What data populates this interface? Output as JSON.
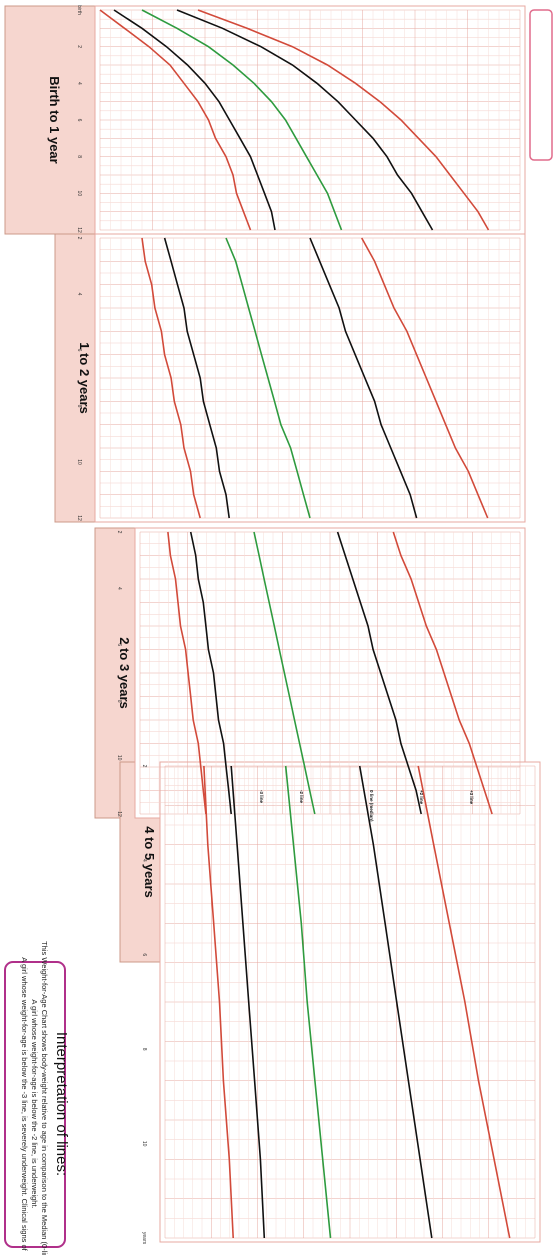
{
  "page": {
    "orientation": "rotated-90",
    "background": "#ffffff",
    "panel_fill": "#f6d6cf",
    "grid_color": "#e7a9a0"
  },
  "chart_data": [
    {
      "type": "line",
      "panel": "Birth to 1 year",
      "x_label": "months",
      "x": [
        0,
        1,
        2,
        3,
        4,
        5,
        6,
        7,
        8,
        9,
        10,
        11,
        12
      ],
      "series": [
        {
          "name": "-3",
          "color": "#d24a3a",
          "values": [
            2.0,
            2.7,
            3.4,
            4.0,
            4.4,
            4.8,
            5.1,
            5.3,
            5.6,
            5.8,
            5.9,
            6.1,
            6.3
          ]
        },
        {
          "name": "-2",
          "color": "#111111",
          "values": [
            2.4,
            3.2,
            3.9,
            4.5,
            5.0,
            5.4,
            5.7,
            6.0,
            6.3,
            6.5,
            6.7,
            6.9,
            7.0
          ]
        },
        {
          "name": "0",
          "color": "#2e9b3f",
          "values": [
            3.2,
            4.2,
            5.1,
            5.8,
            6.4,
            6.9,
            7.3,
            7.6,
            7.9,
            8.2,
            8.5,
            8.7,
            8.9
          ]
        },
        {
          "name": "+2",
          "color": "#111111",
          "values": [
            4.2,
            5.5,
            6.6,
            7.5,
            8.2,
            8.8,
            9.3,
            9.8,
            10.2,
            10.5,
            10.9,
            11.2,
            11.5
          ]
        },
        {
          "name": "+3",
          "color": "#d24a3a",
          "values": [
            4.8,
            6.2,
            7.5,
            8.5,
            9.3,
            10.0,
            10.6,
            11.1,
            11.6,
            12.0,
            12.4,
            12.8,
            13.1
          ]
        }
      ]
    },
    {
      "type": "line",
      "panel": "1 to 2 years",
      "x_label": "months",
      "x": [
        12,
        13,
        14,
        15,
        16,
        17,
        18,
        19,
        20,
        21,
        22,
        23,
        24
      ],
      "series": [
        {
          "name": "-3",
          "color": "#d24a3a",
          "values": [
            6.3,
            6.4,
            6.6,
            6.7,
            6.9,
            7.0,
            7.2,
            7.3,
            7.5,
            7.6,
            7.8,
            7.9,
            8.1
          ]
        },
        {
          "name": "-2",
          "color": "#111111",
          "values": [
            7.0,
            7.2,
            7.4,
            7.6,
            7.7,
            7.9,
            8.1,
            8.2,
            8.4,
            8.6,
            8.7,
            8.9,
            9.0
          ]
        },
        {
          "name": "0",
          "color": "#2e9b3f",
          "values": [
            8.9,
            9.2,
            9.4,
            9.6,
            9.8,
            10.0,
            10.2,
            10.4,
            10.6,
            10.9,
            11.1,
            11.3,
            11.5
          ]
        },
        {
          "name": "+2",
          "color": "#111111",
          "values": [
            11.5,
            11.8,
            12.1,
            12.4,
            12.6,
            12.9,
            13.2,
            13.5,
            13.7,
            14.0,
            14.3,
            14.6,
            14.8
          ]
        },
        {
          "name": "+3",
          "color": "#d24a3a",
          "values": [
            13.1,
            13.5,
            13.8,
            14.1,
            14.5,
            14.8,
            15.1,
            15.4,
            15.7,
            16.0,
            16.4,
            16.7,
            17.0
          ]
        }
      ]
    },
    {
      "type": "line",
      "panel": "2 to 3 years",
      "x_label": "months",
      "x": [
        24,
        25,
        26,
        27,
        28,
        29,
        30,
        31,
        32,
        33,
        34,
        35,
        36
      ],
      "series": [
        {
          "name": "-3",
          "color": "#d24a3a",
          "values": [
            8.1,
            8.2,
            8.4,
            8.5,
            8.6,
            8.8,
            8.9,
            9.0,
            9.1,
            9.3,
            9.4,
            9.5,
            9.6
          ]
        },
        {
          "name": "-2",
          "color": "#111111",
          "values": [
            9.0,
            9.2,
            9.3,
            9.5,
            9.6,
            9.7,
            9.9,
            10.0,
            10.1,
            10.3,
            10.4,
            10.5,
            10.6
          ]
        },
        {
          "name": "0",
          "color": "#2e9b3f",
          "values": [
            11.5,
            11.7,
            11.9,
            12.1,
            12.3,
            12.5,
            12.7,
            12.9,
            13.1,
            13.3,
            13.5,
            13.7,
            13.9
          ]
        },
        {
          "name": "+2",
          "color": "#111111",
          "values": [
            14.8,
            15.1,
            15.4,
            15.7,
            16.0,
            16.2,
            16.5,
            16.8,
            17.1,
            17.3,
            17.6,
            17.9,
            18.1
          ]
        },
        {
          "name": "+3",
          "color": "#d24a3a",
          "values": [
            17.0,
            17.3,
            17.7,
            18.0,
            18.3,
            18.7,
            19.0,
            19.3,
            19.6,
            20.0,
            20.3,
            20.6,
            20.9
          ]
        }
      ]
    },
    {
      "type": "line",
      "panel": "4 to 5 years",
      "x_label": "months",
      "x": [
        48,
        50,
        52,
        54,
        56,
        58,
        60
      ],
      "series": [
        {
          "name": "-3",
          "color": "#d24a3a",
          "values": [
            11.0,
            11.2,
            11.5,
            11.8,
            12.0,
            12.3,
            12.5
          ]
        },
        {
          "name": "-2",
          "color": "#111111",
          "values": [
            12.4,
            12.7,
            13.0,
            13.3,
            13.6,
            13.9,
            14.1
          ]
        },
        {
          "name": "0",
          "color": "#2e9b3f",
          "values": [
            15.2,
            15.6,
            16.0,
            16.3,
            16.7,
            17.1,
            17.5
          ]
        },
        {
          "name": "+2",
          "color": "#111111",
          "values": [
            19.0,
            19.7,
            20.3,
            20.9,
            21.5,
            22.1,
            22.7
          ]
        },
        {
          "name": "+3",
          "color": "#d24a3a",
          "values": [
            22.0,
            22.8,
            23.6,
            24.4,
            25.1,
            25.9,
            26.7
          ]
        }
      ]
    }
  ],
  "panels": [
    {
      "label": "Birth to 1 year",
      "months": [
        "birth",
        "2",
        "4",
        "6",
        "8",
        "10",
        "12"
      ]
    },
    {
      "label": "1 to 2 years",
      "months": [
        "2",
        "4",
        "6",
        "8",
        "10",
        "12"
      ]
    },
    {
      "label": "2 to 3 years",
      "months": [
        "2",
        "4",
        "6",
        "8",
        "10",
        "12"
      ]
    },
    {
      "label": "4 to 5 years",
      "months": [
        "2",
        "4",
        "6",
        "8",
        "10",
        "years"
      ]
    }
  ],
  "labels": {
    "z_minus3": "-3 line",
    "z_minus2": "-2 line",
    "z_zero": "0 line (median)",
    "z_plus2": "+2 line",
    "z_plus3": "+3 line",
    "months_word": "months",
    "year_word": "year"
  },
  "interpretation": {
    "title": "Interpretation of lines:",
    "line1": "This Weight-for-Age Chart shows body-weight relative to age in comparison to the Median (0-line).",
    "line2": "A girl whose weight-for-age is below the -2 line, is underweight.",
    "line3": "A girl whose weight-for-age is below the -3 line, is severely underweight. Clinical signs of"
  },
  "colors": {
    "minus3": "#d24a3a",
    "minus2": "#111111",
    "median": "#2e9b3f",
    "plus2": "#111111",
    "plus3": "#d24a3a",
    "interp_border": "#b0308a"
  }
}
